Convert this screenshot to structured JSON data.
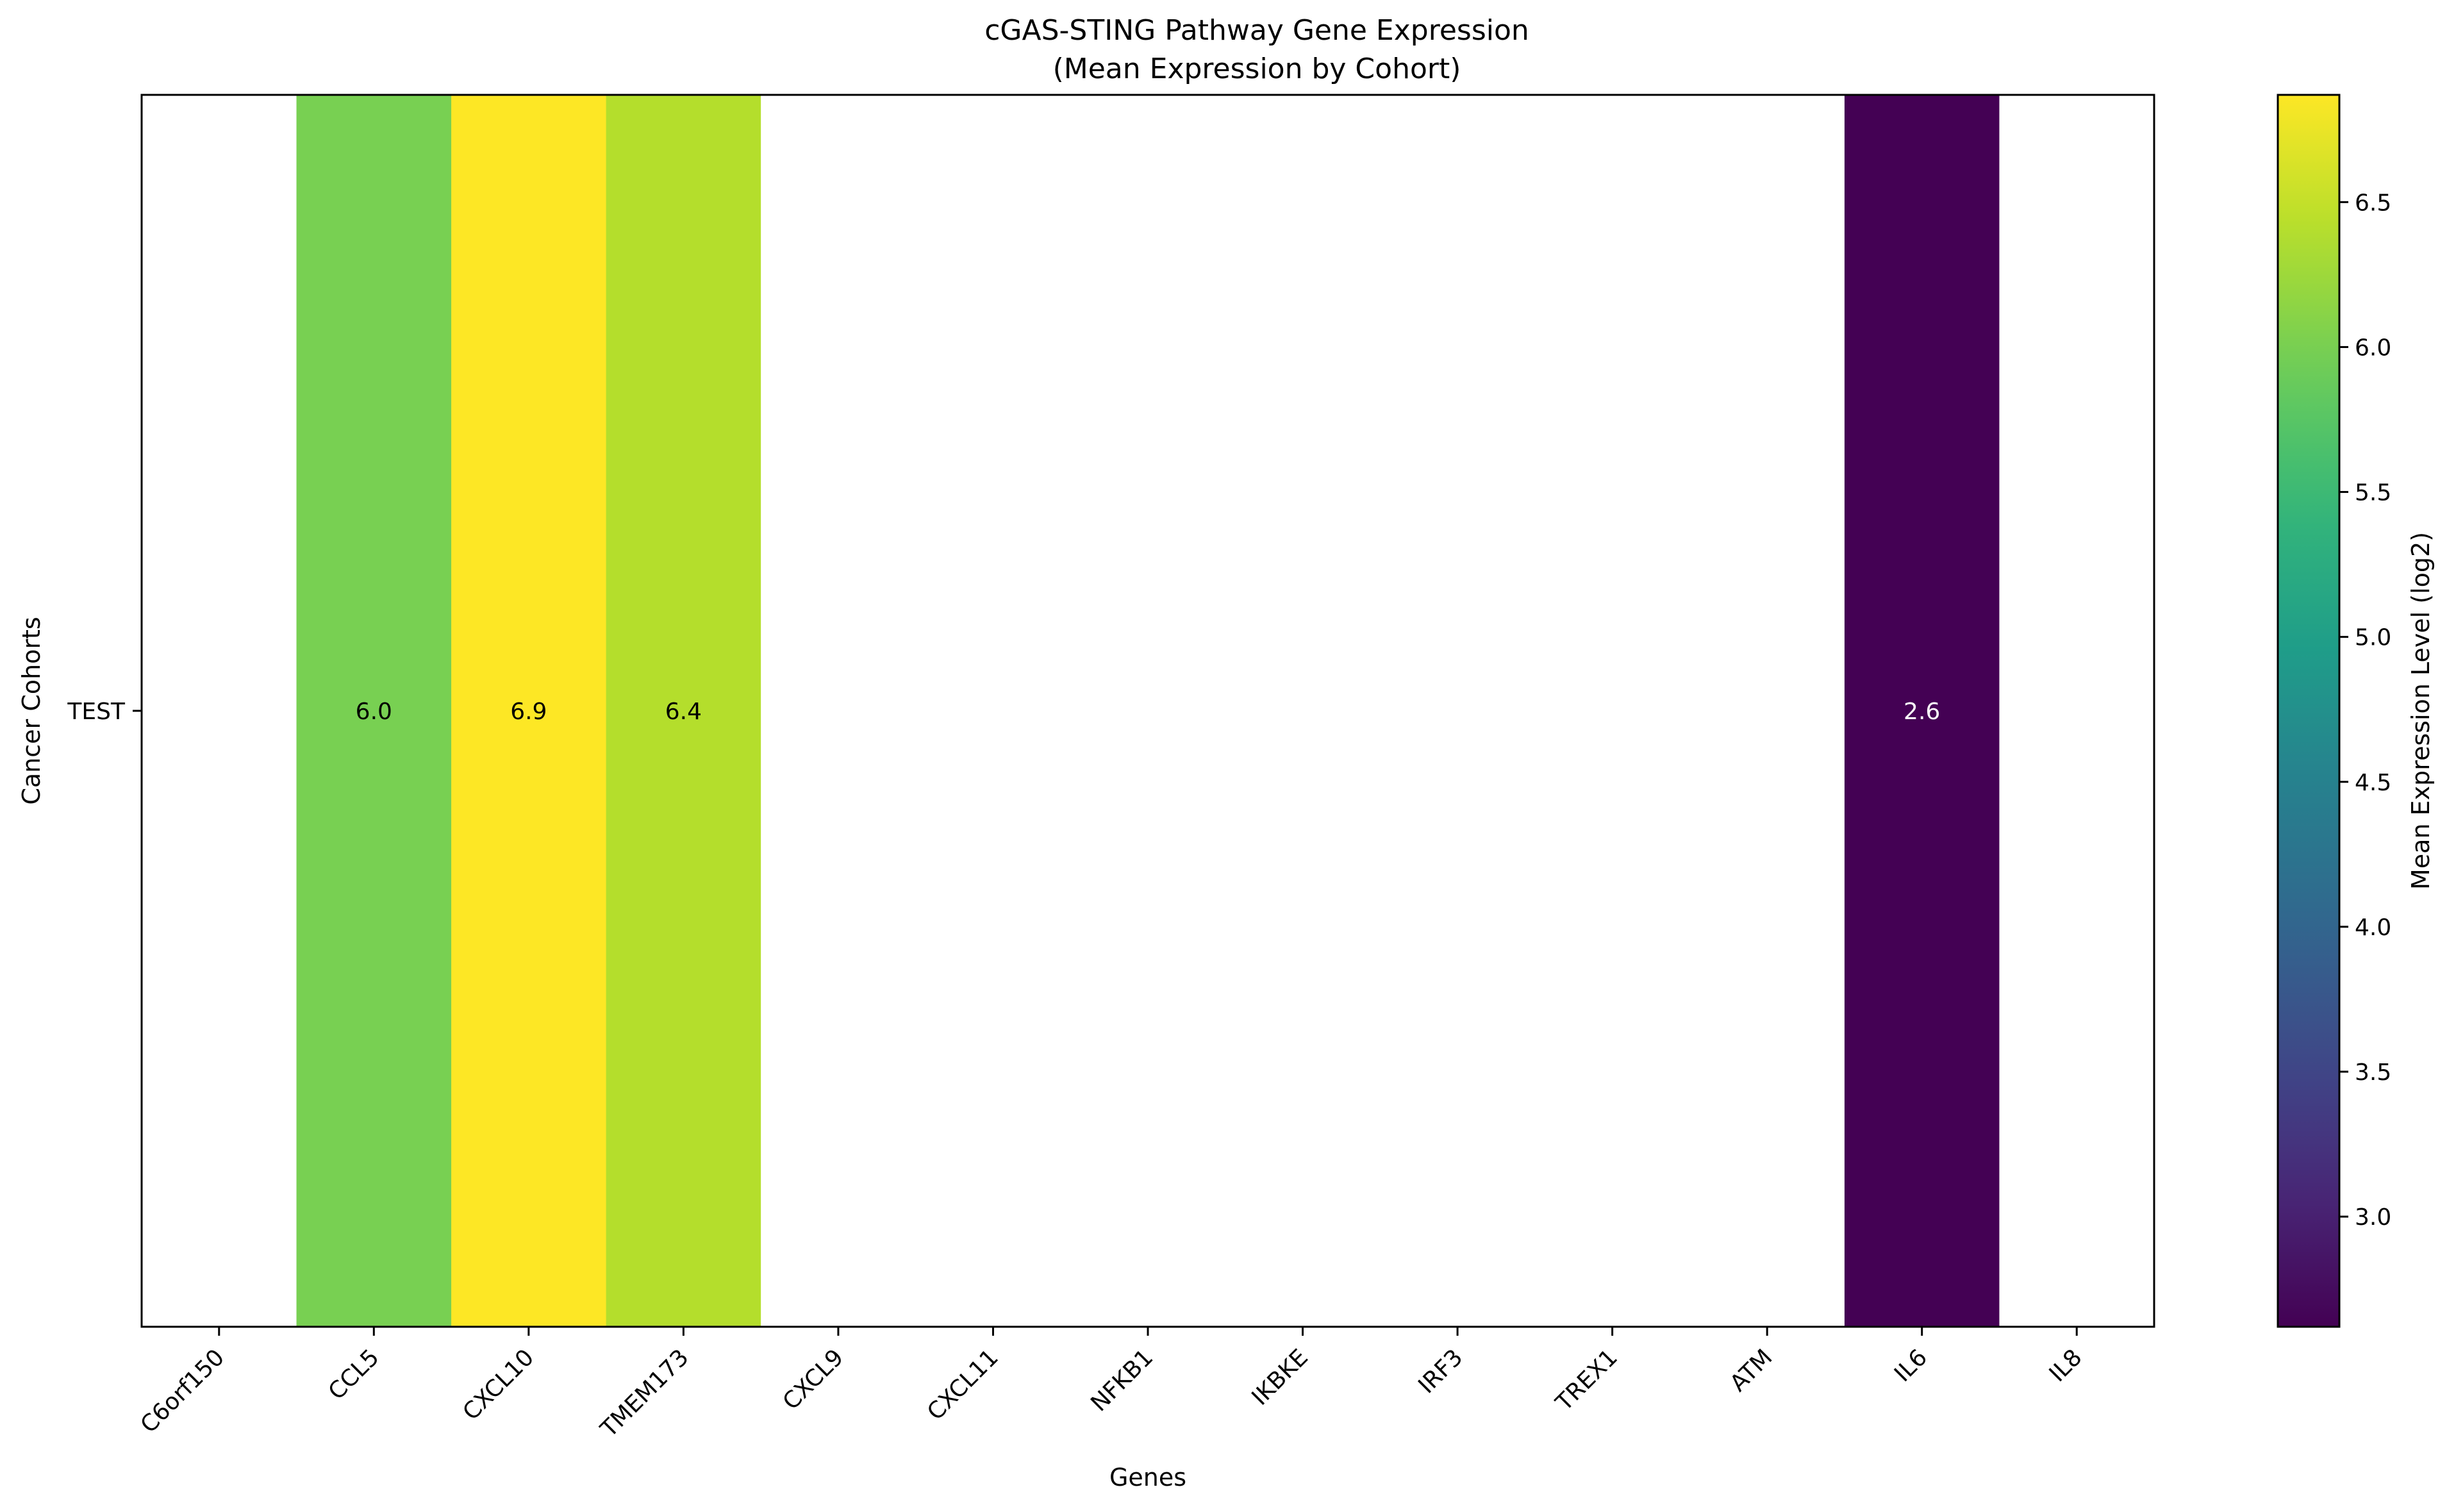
{
  "chart_data": {
    "type": "heatmap",
    "title": "cGAS-STING Pathway Gene Expression",
    "subtitle": "(Mean Expression by Cohort)",
    "xlabel": "Genes",
    "ylabel": "Cancer Cohorts",
    "rows": [
      "TEST"
    ],
    "columns": [
      "C6orf150",
      "CCL5",
      "CXCL10",
      "TMEM173",
      "CXCL9",
      "CXCL11",
      "NFKB1",
      "IKBKE",
      "IRF3",
      "TREX1",
      "ATM",
      "IL6",
      "IL8"
    ],
    "values": [
      [
        null,
        6.0,
        6.9,
        6.4,
        null,
        null,
        null,
        null,
        null,
        null,
        null,
        2.6,
        null
      ]
    ],
    "cell_labels": [
      [
        "",
        "6.0",
        "6.9",
        "6.4",
        "",
        "",
        "",
        "",
        "",
        "",
        "",
        "2.6",
        ""
      ]
    ],
    "colormap": "viridis",
    "colorbar": {
      "label": "Mean Expression Level (log2)",
      "range": [
        2.62,
        6.87
      ],
      "ticks": [
        3.0,
        3.5,
        4.0,
        4.5,
        5.0,
        5.5,
        6.0,
        6.5
      ],
      "tick_labels": [
        "3.0",
        "3.5",
        "4.0",
        "4.5",
        "5.0",
        "5.5",
        "6.0",
        "6.5"
      ]
    },
    "missing_color": "#ffffff"
  }
}
